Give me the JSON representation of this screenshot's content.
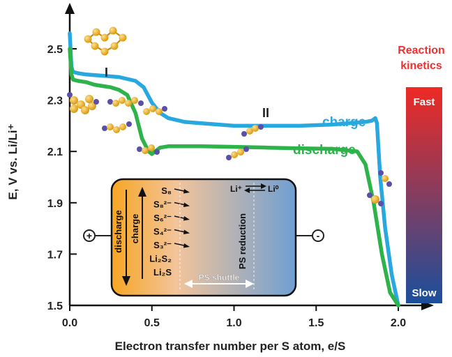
{
  "chart_data": {
    "type": "line",
    "xlabel": "Electron transfer number per S atom, e/S",
    "ylabel": "E, V vs. Li/Li⁺",
    "xlim": [
      0,
      2.1
    ],
    "ylim": [
      1.5,
      2.6
    ],
    "xticks": [
      "0.0",
      "0.5",
      "1.0",
      "1.5",
      "2.0"
    ],
    "yticks": [
      "1.5",
      "1.7",
      "1.9",
      "2.1",
      "2.3",
      "2.5"
    ],
    "series": [
      {
        "name": "charge",
        "color": "#29a8e0",
        "x": [
          0.0,
          0.01,
          0.02,
          0.05,
          0.1,
          0.2,
          0.3,
          0.4,
          0.45,
          0.5,
          0.55,
          0.6,
          0.7,
          0.8,
          1.0,
          1.2,
          1.4,
          1.6,
          1.7,
          1.8,
          1.84,
          1.86,
          1.87,
          1.89,
          1.92,
          1.96,
          2.0
        ],
        "y": [
          2.56,
          2.43,
          2.41,
          2.405,
          2.4,
          2.395,
          2.39,
          2.375,
          2.35,
          2.29,
          2.25,
          2.23,
          2.215,
          2.21,
          2.2,
          2.2,
          2.2,
          2.205,
          2.21,
          2.215,
          2.22,
          2.23,
          2.21,
          2.0,
          1.8,
          1.62,
          1.5
        ]
      },
      {
        "name": "discharge",
        "color": "#2db34a",
        "x": [
          0.0,
          0.01,
          0.02,
          0.05,
          0.1,
          0.15,
          0.2,
          0.25,
          0.3,
          0.35,
          0.4,
          0.44,
          0.48,
          0.5,
          0.52,
          0.55,
          0.6,
          0.7,
          0.8,
          1.0,
          1.2,
          1.4,
          1.6,
          1.75,
          1.8,
          1.85,
          1.9,
          1.95,
          2.0
        ],
        "y": [
          2.5,
          2.4,
          2.38,
          2.375,
          2.37,
          2.36,
          2.355,
          2.35,
          2.34,
          2.32,
          2.25,
          2.15,
          2.1,
          2.09,
          2.1,
          2.115,
          2.12,
          2.12,
          2.12,
          2.118,
          2.115,
          2.112,
          2.11,
          2.1,
          2.05,
          1.9,
          1.7,
          1.55,
          1.5
        ]
      }
    ],
    "annotations": {
      "region_1": "I",
      "region_2": "II",
      "charge_label": "charge",
      "discharge_label": "discharge"
    },
    "kinetics_bar": {
      "title_line1": "Reaction",
      "title_line2": "kinetics",
      "top_label": "Fast",
      "bottom_label": "Slow",
      "top_color": "#ee2a24",
      "bottom_color": "#1b4f9c"
    },
    "cell_schematic": {
      "positive_terminal": "+",
      "negative_terminal": "-",
      "discharge_arrow_label": "discharge",
      "charge_arrow_label": "charge",
      "species": [
        "S₈",
        "S₈²⁻",
        "S₆²⁻",
        "S₄²⁻",
        "S₃²⁻",
        "Li₂S₂",
        "Li₂S"
      ],
      "shuttle_label": "PS shuttle",
      "reduction_label": "PS reduction",
      "li_plus": "Li⁺",
      "li_zero": "Li⁰",
      "left_color": "#f6a623",
      "right_color": "#6f9fd3"
    }
  }
}
